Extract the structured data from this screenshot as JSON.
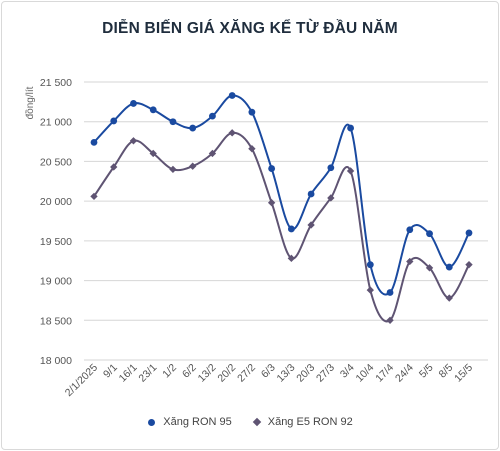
{
  "chart_data": {
    "type": "line",
    "title": "DIỄN BIẾN GIÁ XĂNG KỂ TỪ ĐẦU NĂM",
    "ylabel": "đồng/lít",
    "xlabel": "",
    "ylim": [
      18000,
      21500
    ],
    "yticks": [
      18000,
      18500,
      19000,
      19500,
      20000,
      20500,
      21000,
      21500
    ],
    "ytick_labels": [
      "18 000",
      "18 500",
      "19 000",
      "19 500",
      "20 000",
      "20 500",
      "21 000",
      "21 500"
    ],
    "categories": [
      "2/1/2025",
      "9/1",
      "16/1",
      "23/1",
      "1/2",
      "6/2",
      "13/2",
      "20/2",
      "27/2",
      "6/3",
      "13/3",
      "20/3",
      "27/3",
      "3/4",
      "10/4",
      "17/4",
      "24/4",
      "5/5",
      "8/5",
      "15/5"
    ],
    "series": [
      {
        "name": "Xăng RON 95",
        "color": "#1a4aa0",
        "marker": "circle",
        "values": [
          20740,
          21010,
          21230,
          21150,
          21000,
          20920,
          21070,
          21330,
          21120,
          20410,
          19650,
          20090,
          20420,
          20920,
          19200,
          18850,
          19640,
          19590,
          19170,
          19600
        ]
      },
      {
        "name": "Xăng E5 RON 92",
        "color": "#5f5473",
        "marker": "diamond",
        "values": [
          20060,
          20430,
          20760,
          20600,
          20400,
          20440,
          20600,
          20860,
          20660,
          19980,
          19280,
          19700,
          20040,
          20380,
          18880,
          18500,
          19240,
          19160,
          18780,
          19200
        ]
      }
    ],
    "grid": true,
    "legend_position": "bottom"
  }
}
